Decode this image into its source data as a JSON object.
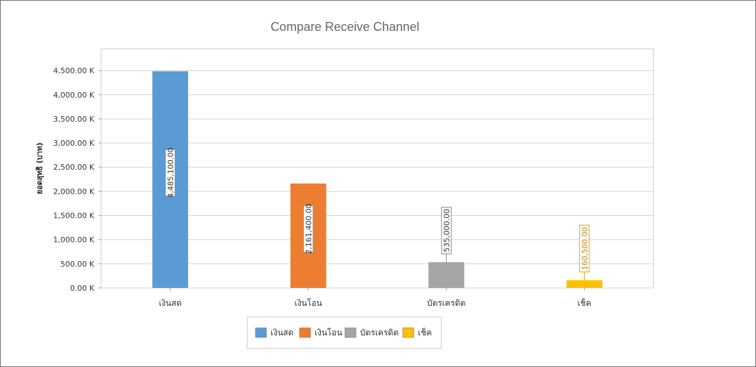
{
  "chart_data": {
    "type": "bar",
    "title": "Compare Receive Channel",
    "ylabel": "ยอดสุทธิ (บาท)",
    "xlabel": "",
    "categories": [
      "เงินสด",
      "เงินโอน",
      "บัตรเครดิต",
      "เช็ค"
    ],
    "values": [
      4485100,
      2161400,
      535000,
      160500
    ],
    "data_labels": [
      "4,485,100.00",
      "2,161,400.00",
      "535,000.00",
      "160,500.00"
    ],
    "colors": [
      "#5b9bd5",
      "#ed7d31",
      "#a5a5a5",
      "#ffc000"
    ],
    "ylim": [
      0,
      4950000
    ],
    "yticks": [
      0,
      500000,
      1000000,
      1500000,
      2000000,
      2500000,
      3000000,
      3500000,
      4000000,
      4500000
    ],
    "ytick_labels": [
      "0.00 K",
      "500.00 K",
      "1,000.00 K",
      "1,500.00 K",
      "2,000.00 K",
      "2,500.00 K",
      "3,000.00 K",
      "3,500.00 K",
      "4,000.00 K",
      "4,500.00 K"
    ],
    "grid": true,
    "legend": {
      "position": "bottom-center",
      "entries": [
        "เงินสด",
        "เงินโอน",
        "บัตรเครดิต",
        "เช็ค"
      ]
    }
  }
}
